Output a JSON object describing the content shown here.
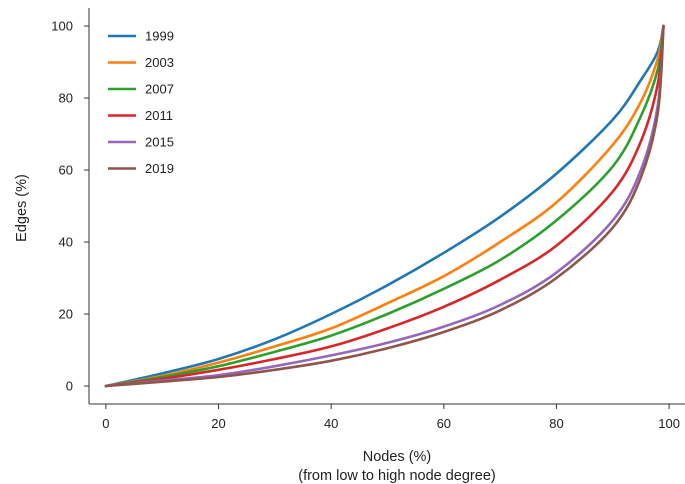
{
  "chart_data": {
    "type": "line",
    "xlabel": "Nodes (%)",
    "xlabel_sub": "(from low to high node degree)",
    "ylabel": "Edges (%)",
    "xlim": [
      -3,
      103
    ],
    "ylim": [
      -5,
      105
    ],
    "x_ticks": [
      0,
      20,
      40,
      60,
      80,
      100
    ],
    "y_ticks": [
      0,
      20,
      40,
      60,
      80,
      100
    ],
    "x_tick_labels": [
      "0",
      "20",
      "40",
      "60",
      "80",
      "100"
    ],
    "y_tick_labels": [
      "0",
      "20",
      "40",
      "60",
      "80",
      "100"
    ],
    "grid": false,
    "legend_position": "top-left",
    "x": [
      0,
      10,
      20,
      30,
      40,
      50,
      60,
      70,
      80,
      90,
      95,
      98,
      99
    ],
    "series": [
      {
        "name": "1999",
        "color": "#1f77b4",
        "values": [
          0,
          3.5,
          7.5,
          13,
          20,
          28,
          37,
          47,
          59,
          74,
          85,
          93,
          100
        ]
      },
      {
        "name": "2003",
        "color": "#ff7f0e",
        "values": [
          0,
          2.8,
          6.5,
          11,
          16,
          23,
          30.5,
          40,
          51,
          67,
          79,
          91,
          100
        ]
      },
      {
        "name": "2007",
        "color": "#2ca02c",
        "values": [
          0,
          2.5,
          5.5,
          9.5,
          14,
          20,
          27,
          35,
          46,
          61,
          75,
          88,
          100
        ]
      },
      {
        "name": "2011",
        "color": "#d62728",
        "values": [
          0,
          2,
          4.5,
          7.5,
          11,
          16,
          22,
          29.5,
          39,
          54,
          68,
          84,
          100
        ]
      },
      {
        "name": "2015",
        "color": "#9467bd",
        "values": [
          0,
          1.5,
          3,
          5.5,
          8.5,
          12,
          16.5,
          22.5,
          31.5,
          46,
          60,
          78,
          100
        ]
      },
      {
        "name": "2019",
        "color": "#8c564b",
        "values": [
          0,
          1.2,
          2.5,
          4.5,
          7,
          10.5,
          15,
          21,
          30,
          44,
          58,
          76,
          100
        ]
      }
    ]
  }
}
